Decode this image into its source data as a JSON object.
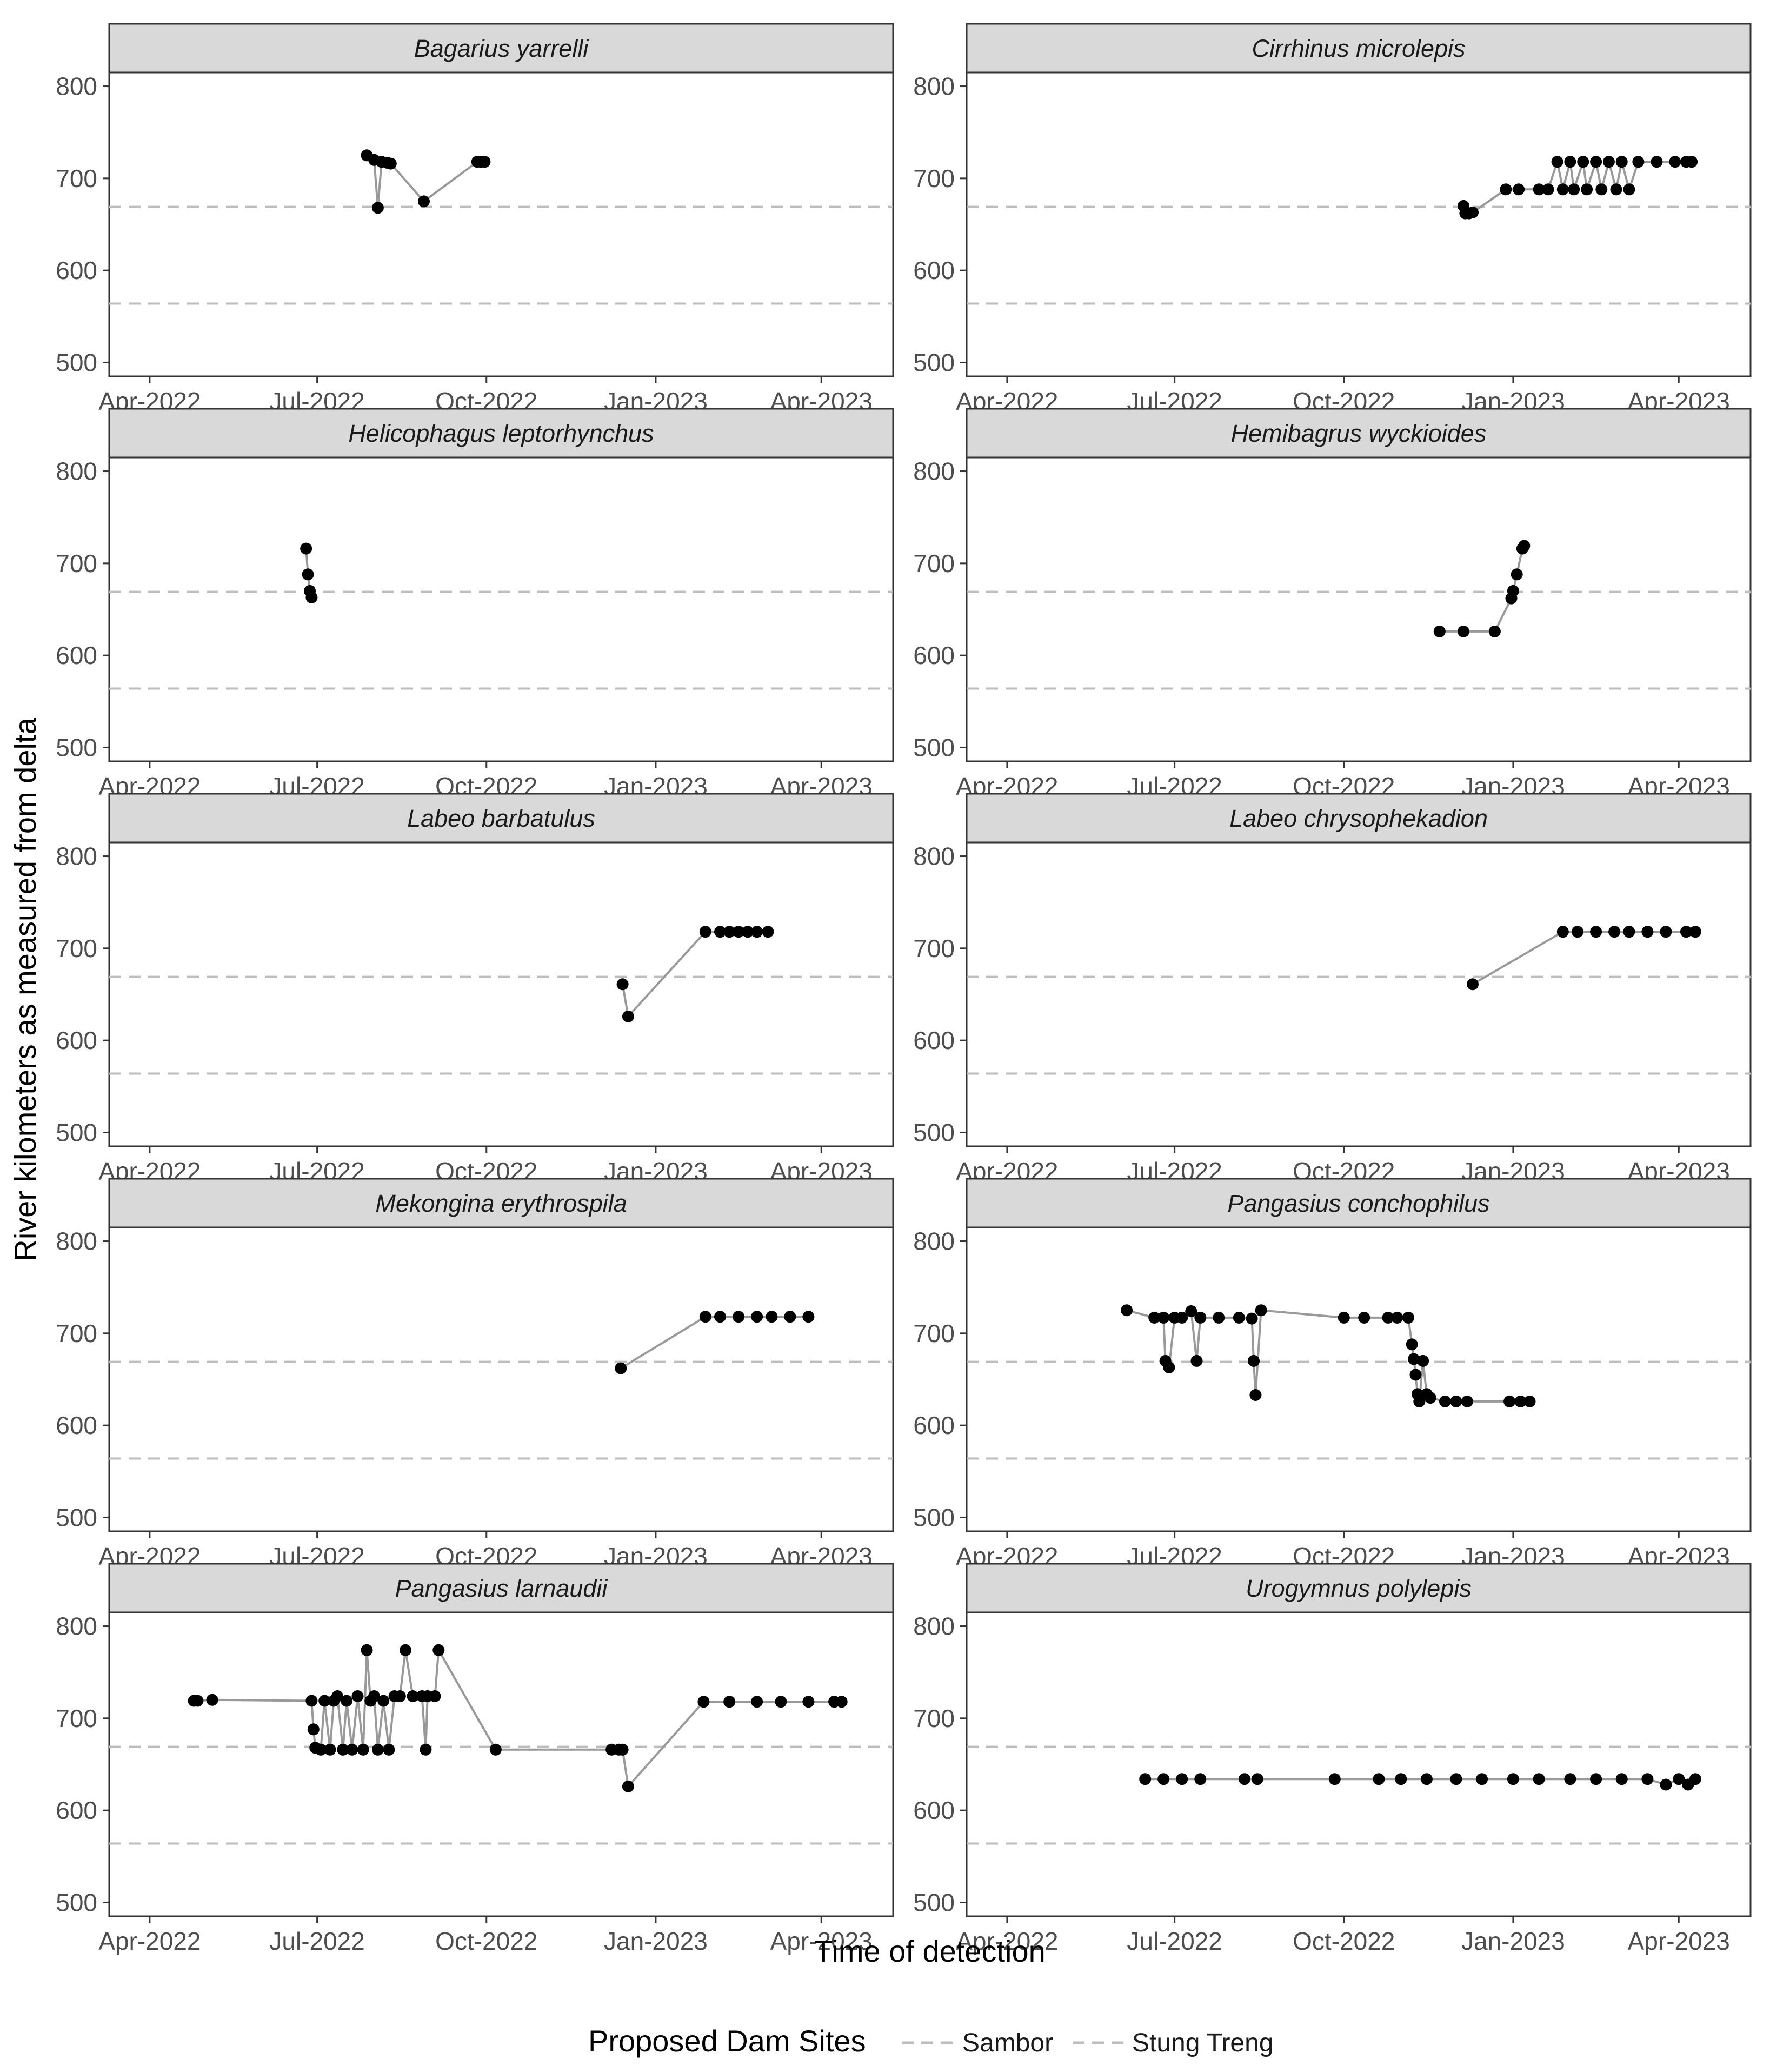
{
  "chart_data": {
    "type": "line",
    "xlabel": "Time of detection",
    "ylabel": "River kilometers as measured from delta",
    "xlim": [
      "2022-03-10",
      "2023-05-10"
    ],
    "ylim": [
      485,
      815
    ],
    "x_ticks": [
      "2022-04-01",
      "2022-07-01",
      "2022-10-01",
      "2023-01-01",
      "2023-04-01"
    ],
    "x_tick_labels": [
      "Apr-2022",
      "Jul-2022",
      "Oct-2022",
      "Jan-2023",
      "Apr-2023"
    ],
    "y_ticks": [
      500,
      600,
      700,
      800
    ],
    "y_tick_labels": [
      "500",
      "600",
      "700",
      "800"
    ],
    "grid": false,
    "reference_lines": [
      {
        "name": "Sambor",
        "y": 564,
        "style": "dashed",
        "color": "#bdbdbd"
      },
      {
        "name": "Stung Treng",
        "y": 669,
        "style": "dashed",
        "color": "#bdbdbd"
      }
    ],
    "legend": {
      "title": "Proposed Dam Sites",
      "position": "bottom",
      "entries": [
        "Sambor",
        "Stung Treng"
      ]
    },
    "colors": {
      "points": "#000000",
      "track": "#999999",
      "strip_fill": "#d9d9d9",
      "panel_border": "#333333",
      "dam_line": "#bdbdbd"
    },
    "panels": [
      {
        "species": "Bagarius yarrelli",
        "points": [
          [
            "2022-07-28",
            725
          ],
          [
            "2022-08-01",
            720
          ],
          [
            "2022-08-03",
            668
          ],
          [
            "2022-08-05",
            718
          ],
          [
            "2022-08-08",
            717
          ],
          [
            "2022-08-10",
            716
          ],
          [
            "2022-08-28",
            675
          ],
          [
            "2022-09-26",
            718
          ],
          [
            "2022-09-28",
            718
          ],
          [
            "2022-09-30",
            718
          ]
        ]
      },
      {
        "species": "Cirrhinus microlepis",
        "points": [
          [
            "2022-12-05",
            670
          ],
          [
            "2022-12-06",
            662
          ],
          [
            "2022-12-08",
            662
          ],
          [
            "2022-12-10",
            663
          ],
          [
            "2022-12-28",
            688
          ],
          [
            "2023-01-04",
            688
          ],
          [
            "2023-01-15",
            688
          ],
          [
            "2023-01-20",
            688
          ],
          [
            "2023-01-25",
            718
          ],
          [
            "2023-01-28",
            688
          ],
          [
            "2023-02-01",
            718
          ],
          [
            "2023-02-03",
            688
          ],
          [
            "2023-02-08",
            718
          ],
          [
            "2023-02-10",
            688
          ],
          [
            "2023-02-15",
            718
          ],
          [
            "2023-02-18",
            688
          ],
          [
            "2023-02-22",
            718
          ],
          [
            "2023-02-26",
            688
          ],
          [
            "2023-03-01",
            718
          ],
          [
            "2023-03-05",
            688
          ],
          [
            "2023-03-10",
            718
          ],
          [
            "2023-03-20",
            718
          ],
          [
            "2023-03-30",
            718
          ],
          [
            "2023-04-05",
            718
          ],
          [
            "2023-04-08",
            718
          ]
        ]
      },
      {
        "species": "Helicophagus leptorhynchus",
        "points": [
          [
            "2022-06-25",
            716
          ],
          [
            "2022-06-26",
            688
          ],
          [
            "2022-06-27",
            670
          ],
          [
            "2022-06-28",
            663
          ]
        ]
      },
      {
        "species": "Hemibagrus wyckioides",
        "points": [
          [
            "2022-11-22",
            626
          ],
          [
            "2022-12-05",
            626
          ],
          [
            "2022-12-22",
            626
          ],
          [
            "2022-12-31",
            662
          ],
          [
            "2023-01-01",
            670
          ],
          [
            "2023-01-03",
            688
          ],
          [
            "2023-01-06",
            716
          ],
          [
            "2023-01-07",
            719
          ]
        ]
      },
      {
        "species": "Labeo barbatulus",
        "points": [
          [
            "2022-12-14",
            661
          ],
          [
            "2022-12-17",
            626
          ],
          [
            "2023-01-28",
            718
          ],
          [
            "2023-02-05",
            718
          ],
          [
            "2023-02-10",
            718
          ],
          [
            "2023-02-15",
            718
          ],
          [
            "2023-02-20",
            718
          ],
          [
            "2023-02-25",
            718
          ],
          [
            "2023-03-03",
            718
          ]
        ]
      },
      {
        "species": "Labeo chrysophekadion",
        "points": [
          [
            "2022-12-10",
            661
          ],
          [
            "2023-01-28",
            718
          ],
          [
            "2023-02-05",
            718
          ],
          [
            "2023-02-15",
            718
          ],
          [
            "2023-02-25",
            718
          ],
          [
            "2023-03-05",
            718
          ],
          [
            "2023-03-15",
            718
          ],
          [
            "2023-03-25",
            718
          ],
          [
            "2023-04-05",
            718
          ],
          [
            "2023-04-10",
            718
          ]
        ]
      },
      {
        "species": "Mekongina erythrospila",
        "points": [
          [
            "2022-12-13",
            662
          ],
          [
            "2023-01-28",
            718
          ],
          [
            "2023-02-05",
            718
          ],
          [
            "2023-02-15",
            718
          ],
          [
            "2023-02-25",
            718
          ],
          [
            "2023-03-05",
            718
          ],
          [
            "2023-03-15",
            718
          ],
          [
            "2023-03-25",
            718
          ]
        ]
      },
      {
        "species": "Pangasius conchophilus",
        "points": [
          [
            "2022-06-05",
            725
          ],
          [
            "2022-06-20",
            717
          ],
          [
            "2022-06-25",
            717
          ],
          [
            "2022-06-26",
            670
          ],
          [
            "2022-06-28",
            663
          ],
          [
            "2022-07-01",
            717
          ],
          [
            "2022-07-05",
            717
          ],
          [
            "2022-07-10",
            724
          ],
          [
            "2022-07-13",
            670
          ],
          [
            "2022-07-15",
            717
          ],
          [
            "2022-07-25",
            717
          ],
          [
            "2022-08-05",
            717
          ],
          [
            "2022-08-12",
            716
          ],
          [
            "2022-08-13",
            670
          ],
          [
            "2022-08-14",
            633
          ],
          [
            "2022-08-17",
            725
          ],
          [
            "2022-10-01",
            717
          ],
          [
            "2022-10-12",
            717
          ],
          [
            "2022-10-25",
            717
          ],
          [
            "2022-10-30",
            717
          ],
          [
            "2022-11-05",
            717
          ],
          [
            "2022-11-07",
            688
          ],
          [
            "2022-11-08",
            672
          ],
          [
            "2022-11-09",
            655
          ],
          [
            "2022-11-10",
            634
          ],
          [
            "2022-11-11",
            626
          ],
          [
            "2022-11-13",
            670
          ],
          [
            "2022-11-15",
            634
          ],
          [
            "2022-11-17",
            630
          ],
          [
            "2022-11-25",
            626
          ],
          [
            "2022-12-01",
            626
          ],
          [
            "2022-12-07",
            626
          ],
          [
            "2022-12-30",
            626
          ],
          [
            "2023-01-05",
            626
          ],
          [
            "2023-01-10",
            626
          ]
        ]
      },
      {
        "species": "Pangasius larnaudii",
        "points": [
          [
            "2022-04-25",
            719
          ],
          [
            "2022-04-27",
            719
          ],
          [
            "2022-05-05",
            720
          ],
          [
            "2022-06-28",
            719
          ],
          [
            "2022-06-29",
            688
          ],
          [
            "2022-06-30",
            668
          ],
          [
            "2022-07-03",
            666
          ],
          [
            "2022-07-05",
            719
          ],
          [
            "2022-07-08",
            666
          ],
          [
            "2022-07-10",
            719
          ],
          [
            "2022-07-12",
            724
          ],
          [
            "2022-07-15",
            666
          ],
          [
            "2022-07-17",
            719
          ],
          [
            "2022-07-20",
            666
          ],
          [
            "2022-07-23",
            724
          ],
          [
            "2022-07-26",
            666
          ],
          [
            "2022-07-28",
            774
          ],
          [
            "2022-07-30",
            719
          ],
          [
            "2022-08-01",
            724
          ],
          [
            "2022-08-03",
            666
          ],
          [
            "2022-08-06",
            719
          ],
          [
            "2022-08-09",
            666
          ],
          [
            "2022-08-12",
            724
          ],
          [
            "2022-08-15",
            724
          ],
          [
            "2022-08-18",
            774
          ],
          [
            "2022-08-22",
            724
          ],
          [
            "2022-08-27",
            724
          ],
          [
            "2022-08-29",
            666
          ],
          [
            "2022-08-30",
            724
          ],
          [
            "2022-09-03",
            724
          ],
          [
            "2022-09-05",
            774
          ],
          [
            "2022-10-06",
            666
          ],
          [
            "2022-12-08",
            666
          ],
          [
            "2022-12-12",
            666
          ],
          [
            "2022-12-14",
            666
          ],
          [
            "2022-12-17",
            626
          ],
          [
            "2023-01-27",
            718
          ],
          [
            "2023-02-10",
            718
          ],
          [
            "2023-02-25",
            718
          ],
          [
            "2023-03-10",
            718
          ],
          [
            "2023-03-25",
            718
          ],
          [
            "2023-04-08",
            718
          ],
          [
            "2023-04-12",
            718
          ]
        ]
      },
      {
        "species": "Urogymnus polylepis",
        "points": [
          [
            "2022-06-15",
            634
          ],
          [
            "2022-06-25",
            634
          ],
          [
            "2022-07-05",
            634
          ],
          [
            "2022-07-15",
            634
          ],
          [
            "2022-08-08",
            634
          ],
          [
            "2022-08-15",
            634
          ],
          [
            "2022-09-26",
            634
          ],
          [
            "2022-10-20",
            634
          ],
          [
            "2022-11-01",
            634
          ],
          [
            "2022-11-15",
            634
          ],
          [
            "2022-12-01",
            634
          ],
          [
            "2022-12-15",
            634
          ],
          [
            "2023-01-01",
            634
          ],
          [
            "2023-01-15",
            634
          ],
          [
            "2023-02-01",
            634
          ],
          [
            "2023-02-15",
            634
          ],
          [
            "2023-03-01",
            634
          ],
          [
            "2023-03-15",
            634
          ],
          [
            "2023-03-25",
            628
          ],
          [
            "2023-04-01",
            634
          ],
          [
            "2023-04-06",
            628
          ],
          [
            "2023-04-10",
            634
          ]
        ]
      }
    ]
  }
}
